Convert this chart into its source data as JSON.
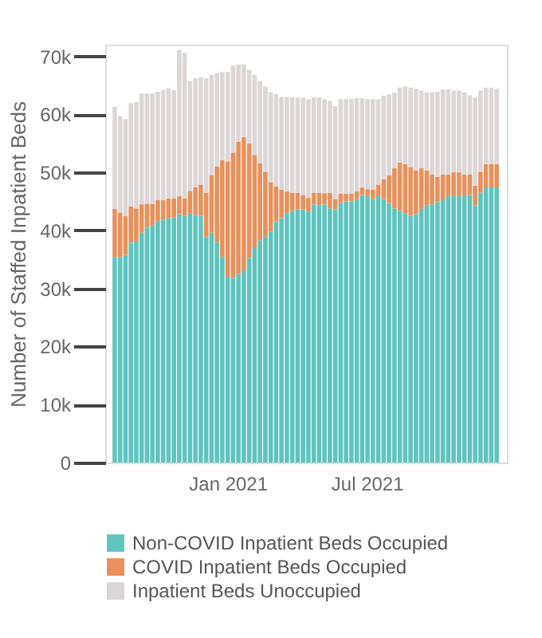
{
  "chart_data": {
    "type": "bar",
    "stacked": true,
    "ylabel": "Number of Staffed Inpatient Beds",
    "x": [
      "2020-08-07",
      "2020-08-14",
      "2020-08-21",
      "2020-08-28",
      "2020-09-04",
      "2020-09-11",
      "2020-09-18",
      "2020-09-25",
      "2020-10-02",
      "2020-10-09",
      "2020-10-16",
      "2020-10-23",
      "2020-10-30",
      "2020-11-06",
      "2020-11-13",
      "2020-11-20",
      "2020-11-27",
      "2020-12-04",
      "2020-12-11",
      "2020-12-18",
      "2020-12-25",
      "2021-01-01",
      "2021-01-08",
      "2021-01-15",
      "2021-01-22",
      "2021-01-29",
      "2021-02-05",
      "2021-02-12",
      "2021-02-19",
      "2021-02-26",
      "2021-03-05",
      "2021-03-12",
      "2021-03-19",
      "2021-03-26",
      "2021-04-02",
      "2021-04-09",
      "2021-04-16",
      "2021-04-23",
      "2021-04-30",
      "2021-05-07",
      "2021-05-14",
      "2021-05-21",
      "2021-05-28",
      "2021-06-04",
      "2021-06-11",
      "2021-06-18",
      "2021-06-25",
      "2021-07-02",
      "2021-07-09",
      "2021-07-16",
      "2021-07-23",
      "2021-07-30",
      "2021-08-06",
      "2021-08-13",
      "2021-08-20",
      "2021-08-27",
      "2021-09-03",
      "2021-09-10",
      "2021-09-17",
      "2021-09-24",
      "2021-10-01",
      "2021-10-08",
      "2021-10-15",
      "2021-10-22",
      "2021-10-29",
      "2021-11-05",
      "2021-11-12",
      "2021-11-19",
      "2021-11-26",
      "2021-12-03",
      "2021-12-10",
      "2021-12-17"
    ],
    "series": [
      {
        "name": "Non-COVID Inpatient Beds Occupied",
        "color": "#5fc4be",
        "values": [
          35400,
          35400,
          35800,
          37900,
          38200,
          39600,
          40500,
          40900,
          41600,
          41800,
          42100,
          42200,
          42800,
          42500,
          42900,
          42700,
          42500,
          38800,
          39600,
          38000,
          35400,
          32000,
          31800,
          32500,
          33100,
          35200,
          37100,
          38300,
          38900,
          39800,
          41600,
          42100,
          42900,
          43400,
          43600,
          43600,
          43200,
          44500,
          44300,
          44500,
          43800,
          43600,
          44700,
          45000,
          45000,
          45400,
          46100,
          45900,
          45400,
          45900,
          45400,
          44700,
          43800,
          43400,
          42900,
          42500,
          42800,
          43700,
          44300,
          44500,
          44900,
          45200,
          45900,
          45900,
          45900,
          45900,
          46100,
          44300,
          46500,
          47400,
          47400,
          47400
        ]
      },
      {
        "name": "COVID Inpatient Beds Occupied",
        "color": "#e8915c",
        "values": [
          8300,
          7600,
          6700,
          6200,
          5600,
          4900,
          4100,
          3700,
          3600,
          3400,
          3400,
          3300,
          3100,
          3000,
          3900,
          4700,
          5400,
          7700,
          9900,
          13000,
          16700,
          19900,
          21600,
          22800,
          23000,
          19800,
          15900,
          13300,
          11200,
          8500,
          6000,
          4900,
          3800,
          3100,
          2900,
          2500,
          2400,
          2000,
          2200,
          1900,
          2700,
          1800,
          1600,
          1300,
          1300,
          1300,
          1300,
          1200,
          1600,
          2000,
          3400,
          4800,
          6900,
          8300,
          8500,
          8400,
          7500,
          7000,
          6000,
          5100,
          4300,
          4400,
          3700,
          4100,
          4100,
          3700,
          3500,
          3400,
          3600,
          4000,
          4000,
          4000
        ]
      },
      {
        "name": "Inpatient Beds Unoccupied",
        "color": "#ddd6d6",
        "values": [
          17600,
          16700,
          16700,
          17800,
          18300,
          19100,
          19000,
          19000,
          18700,
          19000,
          19000,
          18700,
          25200,
          25100,
          18900,
          18800,
          18500,
          19700,
          17300,
          16100,
          15200,
          15400,
          15000,
          13300,
          12500,
          12700,
          13800,
          14100,
          14700,
          15500,
          15900,
          16000,
          16300,
          16500,
          16400,
          16800,
          17000,
          16400,
          16400,
          16200,
          15800,
          16000,
          16300,
          16300,
          16300,
          16100,
          15400,
          15500,
          15600,
          14700,
          14400,
          13900,
          13000,
          12900,
          13400,
          13700,
          14100,
          13400,
          13500,
          14200,
          14700,
          14700,
          14700,
          14100,
          14100,
          14200,
          13700,
          15200,
          14000,
          13200,
          13200,
          13000
        ]
      }
    ],
    "ylim": [
      0,
      72000
    ],
    "yticks": [
      0,
      {
        "value": 10000,
        "label": "10k"
      },
      {
        "value": 20000,
        "label": "20k"
      },
      {
        "value": 30000,
        "label": "30k"
      },
      {
        "value": 40000,
        "label": "40k"
      },
      {
        "value": 50000,
        "label": "50k"
      },
      {
        "value": 60000,
        "label": "60k"
      },
      {
        "value": 70000,
        "label": "70k"
      }
    ],
    "xlim": [
      "2020-08-05",
      "2021-12-20"
    ],
    "xticks": [
      {
        "value": "2021-01-01",
        "label": "Jan 2021"
      },
      {
        "value": "2021-07-01",
        "label": "Jul 2021"
      }
    ],
    "grid": false,
    "legend": "bottom"
  }
}
